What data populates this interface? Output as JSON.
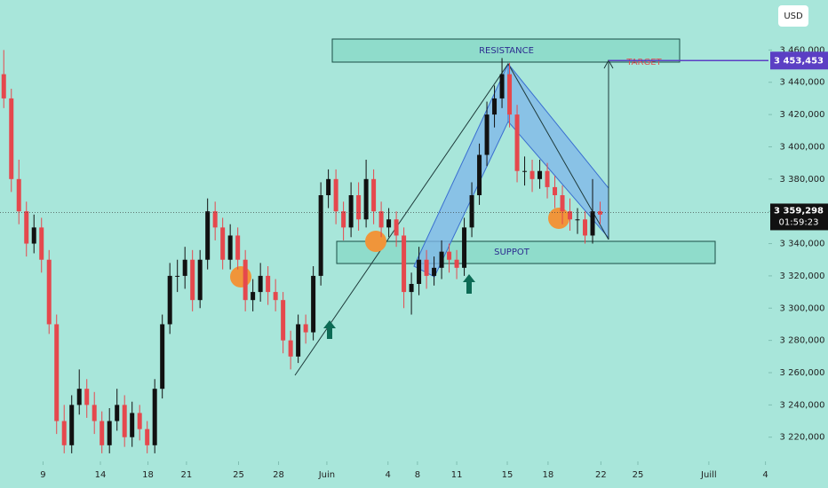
{
  "chart_data": {
    "type": "candlestick",
    "currency": "USD",
    "annotations": {
      "resistance": "RESISTANCE",
      "support": "SUPPOT",
      "target": "TARGET"
    },
    "x": [
      0,
      1,
      2,
      3,
      4,
      5,
      6,
      7,
      8,
      9,
      10,
      11,
      12,
      13,
      14,
      15,
      16,
      17,
      18,
      19,
      20,
      21,
      22,
      23,
      24,
      25,
      26,
      27,
      28,
      29,
      30,
      31,
      32,
      33,
      34,
      35,
      36,
      37,
      38,
      39,
      40,
      41,
      42,
      43,
      44,
      45,
      46,
      47,
      48,
      49,
      50,
      51,
      52,
      53,
      54,
      55,
      56,
      57,
      58,
      59,
      60,
      61,
      62,
      63,
      64,
      65,
      66,
      67,
      68,
      69,
      70,
      71,
      72,
      73,
      74,
      75,
      76,
      77,
      78,
      79
    ],
    "open": [
      3445,
      3430,
      3380,
      3360,
      3340,
      3350,
      3330,
      3290,
      3230,
      3215,
      3240,
      3250,
      3240,
      3230,
      3215,
      3230,
      3240,
      3220,
      3235,
      3225,
      3215,
      3250,
      3290,
      3320,
      3320,
      3330,
      3305,
      3330,
      3360,
      3350,
      3330,
      3345,
      3330,
      3305,
      3310,
      3320,
      3310,
      3305,
      3280,
      3270,
      3290,
      3285,
      3320,
      3370,
      3380,
      3360,
      3350,
      3370,
      3355,
      3380,
      3360,
      3350,
      3355,
      3345,
      3310,
      3315,
      3330,
      3320,
      3325,
      3335,
      3330,
      3325,
      3350,
      3370,
      3395,
      3420,
      3430,
      3445,
      3420,
      3385,
      3385,
      3380,
      3385,
      3375,
      3370,
      3360,
      3355,
      3355,
      3345,
      3360
    ],
    "high": [
      3460,
      3436,
      3392,
      3366,
      3358,
      3356,
      3336,
      3296,
      3240,
      3246,
      3262,
      3256,
      3248,
      3236,
      3238,
      3250,
      3246,
      3242,
      3240,
      3230,
      3256,
      3296,
      3328,
      3330,
      3338,
      3336,
      3336,
      3368,
      3366,
      3356,
      3352,
      3350,
      3336,
      3318,
      3328,
      3326,
      3318,
      3310,
      3286,
      3296,
      3296,
      3326,
      3378,
      3386,
      3386,
      3366,
      3378,
      3378,
      3392,
      3386,
      3366,
      3362,
      3360,
      3350,
      3322,
      3338,
      3336,
      3332,
      3342,
      3340,
      3336,
      3356,
      3378,
      3402,
      3428,
      3438,
      3455,
      3452,
      3426,
      3394,
      3392,
      3392,
      3390,
      3382,
      3376,
      3368,
      3362,
      3360,
      3380,
      3366
    ],
    "low": [
      3424,
      3372,
      3352,
      3332,
      3334,
      3322,
      3284,
      3222,
      3210,
      3210,
      3234,
      3232,
      3222,
      3210,
      3210,
      3224,
      3214,
      3214,
      3218,
      3210,
      3210,
      3244,
      3284,
      3310,
      3312,
      3298,
      3300,
      3324,
      3342,
      3324,
      3324,
      3324,
      3298,
      3298,
      3304,
      3302,
      3298,
      3272,
      3262,
      3266,
      3278,
      3280,
      3314,
      3362,
      3352,
      3342,
      3344,
      3348,
      3350,
      3352,
      3344,
      3344,
      3338,
      3300,
      3296,
      3308,
      3312,
      3314,
      3318,
      3322,
      3318,
      3320,
      3344,
      3364,
      3388,
      3412,
      3424,
      3412,
      3378,
      3376,
      3372,
      3374,
      3368,
      3362,
      3352,
      3348,
      3346,
      3340,
      3340,
      3352
    ],
    "close": [
      3430,
      3380,
      3360,
      3340,
      3350,
      3330,
      3290,
      3230,
      3215,
      3240,
      3250,
      3240,
      3230,
      3215,
      3230,
      3240,
      3220,
      3235,
      3225,
      3215,
      3250,
      3290,
      3320,
      3320,
      3330,
      3305,
      3330,
      3360,
      3350,
      3330,
      3345,
      3330,
      3305,
      3310,
      3320,
      3310,
      3305,
      3280,
      3270,
      3290,
      3285,
      3320,
      3370,
      3380,
      3360,
      3350,
      3370,
      3355,
      3380,
      3360,
      3350,
      3355,
      3345,
      3310,
      3315,
      3330,
      3320,
      3325,
      3335,
      3330,
      3325,
      3350,
      3370,
      3395,
      3420,
      3430,
      3445,
      3420,
      3385,
      3385,
      3380,
      3385,
      3375,
      3370,
      3360,
      3355,
      3355,
      3345,
      3360,
      3358
    ],
    "up_color": "#111111",
    "down_color": "#e5484d",
    "last_price": {
      "value": 3359.298,
      "label": "3 359,298"
    },
    "countdown": "01:59:23",
    "target_price": {
      "value": 3453.453,
      "label": "3 453,453"
    },
    "xlim": [
      -0.5,
      101.3
    ],
    "xticks": [
      {
        "value": 5.2,
        "label": "9"
      },
      {
        "value": 12.8,
        "label": "14"
      },
      {
        "value": 19.1,
        "label": "18"
      },
      {
        "value": 24.2,
        "label": "21"
      },
      {
        "value": 31.1,
        "label": "25"
      },
      {
        "value": 36.4,
        "label": "28"
      },
      {
        "value": 42.8,
        "label": "Juin"
      },
      {
        "value": 50.9,
        "label": "4"
      },
      {
        "value": 54.8,
        "label": "8"
      },
      {
        "value": 60,
        "label": "11"
      },
      {
        "value": 66.7,
        "label": "15"
      },
      {
        "value": 72.1,
        "label": "18"
      },
      {
        "value": 79.1,
        "label": "22"
      },
      {
        "value": 84,
        "label": "25"
      },
      {
        "value": 93.4,
        "label": "Juill"
      },
      {
        "value": 100.9,
        "label": "4"
      }
    ],
    "ylim": [
      3205,
      3491
    ],
    "yticks": [
      {
        "value": 3220,
        "label": "3 220,000"
      },
      {
        "value": 3240,
        "label": "3 240,000"
      },
      {
        "value": 3260,
        "label": "3 260,000"
      },
      {
        "value": 3280,
        "label": "3 280,000"
      },
      {
        "value": 3300,
        "label": "3 300,000"
      },
      {
        "value": 3320,
        "label": "3 320,000"
      },
      {
        "value": 3340,
        "label": "3 340,000"
      },
      {
        "value": 3360,
        "label": "3 360,000"
      },
      {
        "value": 3380,
        "label": "3 380,000"
      },
      {
        "value": 3400,
        "label": "3 400,000"
      },
      {
        "value": 3420,
        "label": "3 420,000"
      },
      {
        "value": 3440,
        "label": "3 440,000"
      },
      {
        "value": 3460,
        "label": "3 460,000"
      }
    ]
  }
}
